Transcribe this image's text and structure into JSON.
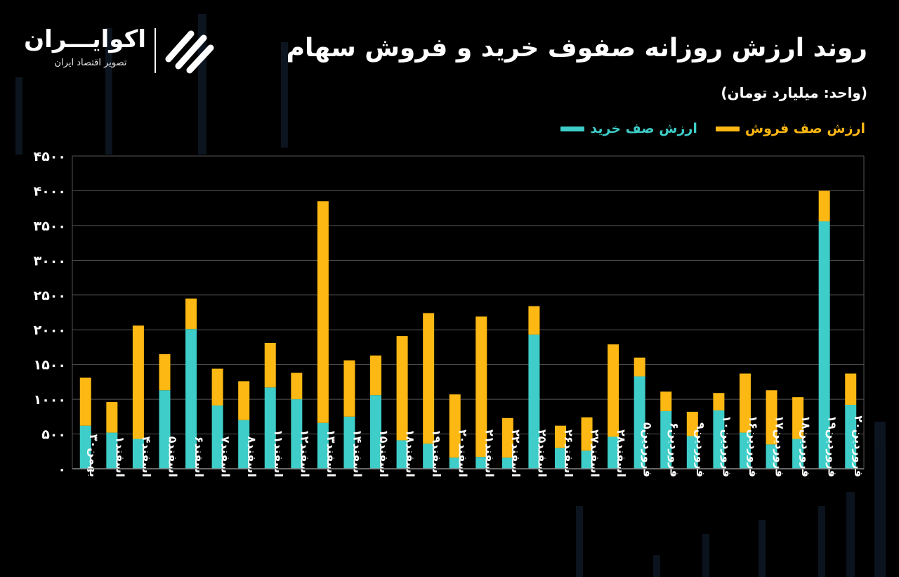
{
  "header": {
    "title": "روند ارزش روزانه صفوف خرید و فروش سهام",
    "subtitle": "(واحد: میلیارد تومان)"
  },
  "logo": {
    "name": "اکوایـــران",
    "tagline": "تصویر اقتصاد ایران"
  },
  "legend": {
    "buy": "ارزش صف خرید",
    "sell": "ارزش صف فروش"
  },
  "colors": {
    "buy": "#3ECDC8",
    "sell": "#FDB813",
    "background": "#000000",
    "grid": "#555555"
  },
  "chart_data": {
    "type": "bar",
    "stacked": true,
    "ylim": [
      0,
      4500
    ],
    "grid": true,
    "legend_position": "top-right",
    "y_ticks": [
      "۰",
      "۵۰۰",
      "۱۰۰۰",
      "۱۵۰۰",
      "۲۰۰۰",
      "۲۵۰۰",
      "۳۰۰۰",
      "۳۵۰۰",
      "۴۰۰۰",
      "۴۵۰۰"
    ],
    "categories": [
      "بهمن۳۰",
      "اسفند۱",
      "اسفند۴",
      "اسفند۵",
      "اسفند۶",
      "اسفند۷",
      "اسفند۸",
      "اسفند۱۱",
      "اسفند۱۲",
      "اسفند۱۳",
      "اسفند۱۴",
      "اسفند۱۵",
      "اسفند۱۸",
      "اسفند۱۹",
      "اسفند۲۰",
      "اسفند۲۱",
      "اسفند۲۲",
      "اسفند۲۵",
      "اسفند۲۶",
      "اسفند۲۷",
      "اسفند۲۸",
      "فروردین۵",
      "فروردین۶",
      "فروردین۹",
      "فروردین۱۰",
      "فروردین۱۶",
      "فروردین۱۷",
      "فروردین۱۸",
      "فروردین۱۹",
      "فروردین۲۰"
    ],
    "series": [
      {
        "name": "ارزش صف خرید",
        "values": [
          620,
          520,
          430,
          1130,
          2010,
          910,
          700,
          1170,
          1000,
          660,
          750,
          1060,
          410,
          360,
          160,
          170,
          160,
          1930,
          300,
          260,
          460,
          1330,
          830,
          470,
          840,
          520,
          350,
          430,
          3560,
          920
        ]
      },
      {
        "name": "ارزش صف فروش",
        "values": [
          690,
          440,
          1630,
          520,
          440,
          530,
          560,
          640,
          380,
          3190,
          810,
          570,
          1500,
          1880,
          910,
          2020,
          570,
          410,
          320,
          480,
          1330,
          270,
          280,
          350,
          250,
          850,
          780,
          600,
          440,
          450
        ]
      }
    ]
  }
}
